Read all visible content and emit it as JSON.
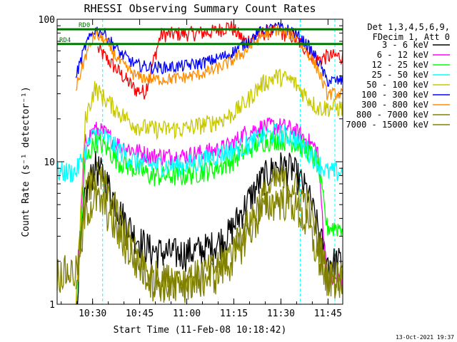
{
  "chart_data": {
    "type": "line",
    "title": "RHESSI Observing Summary Count Rates",
    "xlabel": "Start Time (11-Feb-08 10:18:42)",
    "ylabel": "Count Rate (s⁻¹ detector⁻¹)",
    "yscale": "log",
    "ylim": [
      1,
      100
    ],
    "xlim_minutes": [
      0,
      91
    ],
    "x_ticks": [
      {
        "minute": 11.3,
        "label": "10:30"
      },
      {
        "minute": 26.3,
        "label": "10:45"
      },
      {
        "minute": 41.3,
        "label": "11:00"
      },
      {
        "minute": 56.3,
        "label": "11:15"
      },
      {
        "minute": 71.3,
        "label": "11:30"
      },
      {
        "minute": 86.3,
        "label": "11:45"
      }
    ],
    "y_ticks": [
      {
        "value": 1,
        "label": "1"
      },
      {
        "value": 10,
        "label": "10"
      },
      {
        "value": 100,
        "label": "100"
      }
    ],
    "legend_header": [
      "Det 1,3,4,5,6,9,",
      "FDecim 1, Att 0"
    ],
    "legend_position": "right",
    "flags": [
      {
        "label": "RD0",
        "y": 85,
        "x_start_min": 0,
        "x_end_min": 91
      },
      {
        "label": "RD4",
        "y": 67,
        "x_start_min": 0,
        "x_end_min": 91
      }
    ],
    "series": [
      {
        "name": "3 - 6 keV",
        "color": "#000000",
        "points": [
          [
            6,
            1.0
          ],
          [
            9,
            6.0
          ],
          [
            12,
            9.5
          ],
          [
            15,
            8.0
          ],
          [
            20,
            4.5
          ],
          [
            25,
            3.0
          ],
          [
            30,
            2.4
          ],
          [
            35,
            2.3
          ],
          [
            40,
            2.3
          ],
          [
            45,
            2.4
          ],
          [
            50,
            2.6
          ],
          [
            55,
            3.2
          ],
          [
            60,
            5.0
          ],
          [
            65,
            7.5
          ],
          [
            70,
            9.5
          ],
          [
            75,
            9.0
          ],
          [
            80,
            6.0
          ],
          [
            83,
            3.5
          ],
          [
            86,
            2.0
          ],
          [
            91,
            2.0
          ]
        ]
      },
      {
        "name": "6 - 12 keV",
        "color": "#ff00ff",
        "points": [
          [
            6,
            1.0
          ],
          [
            9,
            14
          ],
          [
            12,
            17
          ],
          [
            15,
            16
          ],
          [
            20,
            13
          ],
          [
            25,
            12
          ],
          [
            30,
            11
          ],
          [
            35,
            11
          ],
          [
            40,
            11
          ],
          [
            45,
            11.5
          ],
          [
            50,
            12
          ],
          [
            55,
            13
          ],
          [
            60,
            16
          ],
          [
            65,
            17.5
          ],
          [
            70,
            18
          ],
          [
            75,
            17
          ],
          [
            80,
            14
          ],
          [
            83,
            12
          ],
          [
            86,
            1.5
          ],
          [
            91,
            1.5
          ]
        ]
      },
      {
        "name": "12 - 25 keV",
        "color": "#00ff00",
        "points": [
          [
            6,
            1.0
          ],
          [
            9,
            10
          ],
          [
            12,
            14
          ],
          [
            15,
            13
          ],
          [
            20,
            10
          ],
          [
            25,
            9
          ],
          [
            30,
            8
          ],
          [
            35,
            8
          ],
          [
            40,
            8
          ],
          [
            45,
            8.5
          ],
          [
            50,
            9
          ],
          [
            55,
            10
          ],
          [
            60,
            12
          ],
          [
            65,
            14
          ],
          [
            70,
            14.5
          ],
          [
            75,
            14
          ],
          [
            80,
            12
          ],
          [
            83,
            10
          ],
          [
            86,
            3.5
          ],
          [
            91,
            3.5
          ]
        ]
      },
      {
        "name": "25 - 50 keV",
        "color": "#00ffff",
        "points": [
          [
            0,
            8.5
          ],
          [
            6,
            8.5
          ],
          [
            9,
            12
          ],
          [
            12,
            16
          ],
          [
            15,
            15
          ],
          [
            20,
            12
          ],
          [
            25,
            10
          ],
          [
            30,
            9.5
          ],
          [
            35,
            9.5
          ],
          [
            40,
            9.5
          ],
          [
            45,
            10
          ],
          [
            50,
            11
          ],
          [
            55,
            12
          ],
          [
            60,
            13
          ],
          [
            65,
            15
          ],
          [
            70,
            16
          ],
          [
            75,
            15
          ],
          [
            80,
            12
          ],
          [
            83,
            10
          ],
          [
            86,
            8.5
          ],
          [
            91,
            8.5
          ]
        ]
      },
      {
        "name": "50 - 100 keV",
        "color": "#c8c800",
        "points": [
          [
            6,
            1.0
          ],
          [
            9,
            20
          ],
          [
            12,
            33
          ],
          [
            15,
            28
          ],
          [
            20,
            22
          ],
          [
            25,
            18
          ],
          [
            30,
            17
          ],
          [
            35,
            17
          ],
          [
            40,
            17
          ],
          [
            45,
            18
          ],
          [
            50,
            19
          ],
          [
            55,
            21
          ],
          [
            60,
            26
          ],
          [
            65,
            35
          ],
          [
            70,
            40
          ],
          [
            75,
            37
          ],
          [
            80,
            28
          ],
          [
            83,
            24
          ],
          [
            86,
            24
          ],
          [
            91,
            24
          ]
        ]
      },
      {
        "name": "100 - 300 keV",
        "color": "#0000ff",
        "points": [
          [
            6,
            40
          ],
          [
            9,
            65
          ],
          [
            12,
            85
          ],
          [
            15,
            80
          ],
          [
            20,
            58
          ],
          [
            25,
            48
          ],
          [
            30,
            46
          ],
          [
            35,
            46
          ],
          [
            40,
            47
          ],
          [
            45,
            49
          ],
          [
            50,
            52
          ],
          [
            55,
            57
          ],
          [
            60,
            68
          ],
          [
            65,
            82
          ],
          [
            70,
            88
          ],
          [
            75,
            83
          ],
          [
            80,
            65
          ],
          [
            83,
            52
          ],
          [
            86,
            37
          ],
          [
            91,
            37
          ]
        ]
      },
      {
        "name": "300 - 800 keV",
        "color": "#ff8c00",
        "points": [
          [
            6,
            33
          ],
          [
            9,
            55
          ],
          [
            12,
            78
          ],
          [
            15,
            72
          ],
          [
            20,
            50
          ],
          [
            25,
            40
          ],
          [
            30,
            38
          ],
          [
            35,
            38
          ],
          [
            40,
            39
          ],
          [
            45,
            41
          ],
          [
            50,
            44
          ],
          [
            55,
            50
          ],
          [
            60,
            60
          ],
          [
            65,
            76
          ],
          [
            70,
            85
          ],
          [
            75,
            78
          ],
          [
            80,
            58
          ],
          [
            83,
            45
          ],
          [
            86,
            30
          ],
          [
            91,
            30
          ]
        ]
      },
      {
        "name": "800 - 7000 keV",
        "color": "#808000",
        "points": [
          [
            6,
            1.0
          ],
          [
            9,
            6
          ],
          [
            12,
            8
          ],
          [
            15,
            7
          ],
          [
            20,
            4
          ],
          [
            25,
            2.3
          ],
          [
            30,
            1.6
          ],
          [
            35,
            1.5
          ],
          [
            40,
            1.5
          ],
          [
            45,
            1.6
          ],
          [
            50,
            1.8
          ],
          [
            55,
            2.3
          ],
          [
            60,
            3.5
          ],
          [
            65,
            5.5
          ],
          [
            70,
            7.5
          ],
          [
            75,
            7
          ],
          [
            80,
            5
          ],
          [
            83,
            3
          ],
          [
            86,
            1.6
          ],
          [
            91,
            1.6
          ]
        ]
      },
      {
        "name": "7000 - 15000 keV",
        "color": "#808000",
        "points": [
          [
            0,
            1.7
          ],
          [
            6,
            1.7
          ],
          [
            9,
            4.5
          ],
          [
            12,
            5.5
          ],
          [
            15,
            5
          ],
          [
            20,
            3
          ],
          [
            25,
            2
          ],
          [
            30,
            1.5
          ],
          [
            35,
            1.4
          ],
          [
            40,
            1.4
          ],
          [
            45,
            1.5
          ],
          [
            50,
            1.6
          ],
          [
            55,
            2.0
          ],
          [
            60,
            3
          ],
          [
            65,
            4.5
          ],
          [
            70,
            5.5
          ],
          [
            75,
            5.2
          ],
          [
            80,
            3.5
          ],
          [
            83,
            2.2
          ],
          [
            86,
            1.5
          ],
          [
            91,
            1.5
          ]
        ]
      }
    ],
    "atten_red": {
      "color": "#ff0000",
      "points": [
        [
          13,
          62
        ],
        [
          20,
          42
        ],
        [
          25,
          32
        ],
        [
          28,
          31
        ],
        [
          33,
          78
        ],
        [
          38,
          79
        ],
        [
          45,
          80
        ],
        [
          50,
          82
        ],
        [
          55,
          90
        ],
        [
          60,
          70
        ],
        [
          65,
          80
        ],
        [
          70,
          82
        ],
        [
          75,
          76
        ],
        [
          80,
          60
        ],
        [
          83,
          52
        ],
        [
          86,
          55
        ],
        [
          91,
          55
        ]
      ]
    },
    "event_lines": {
      "color": "#00ffff",
      "minutes": [
        14.5,
        77.5,
        88.5
      ]
    }
  },
  "footer": {
    "date_stamp": "13-Oct-2021 19:37"
  }
}
